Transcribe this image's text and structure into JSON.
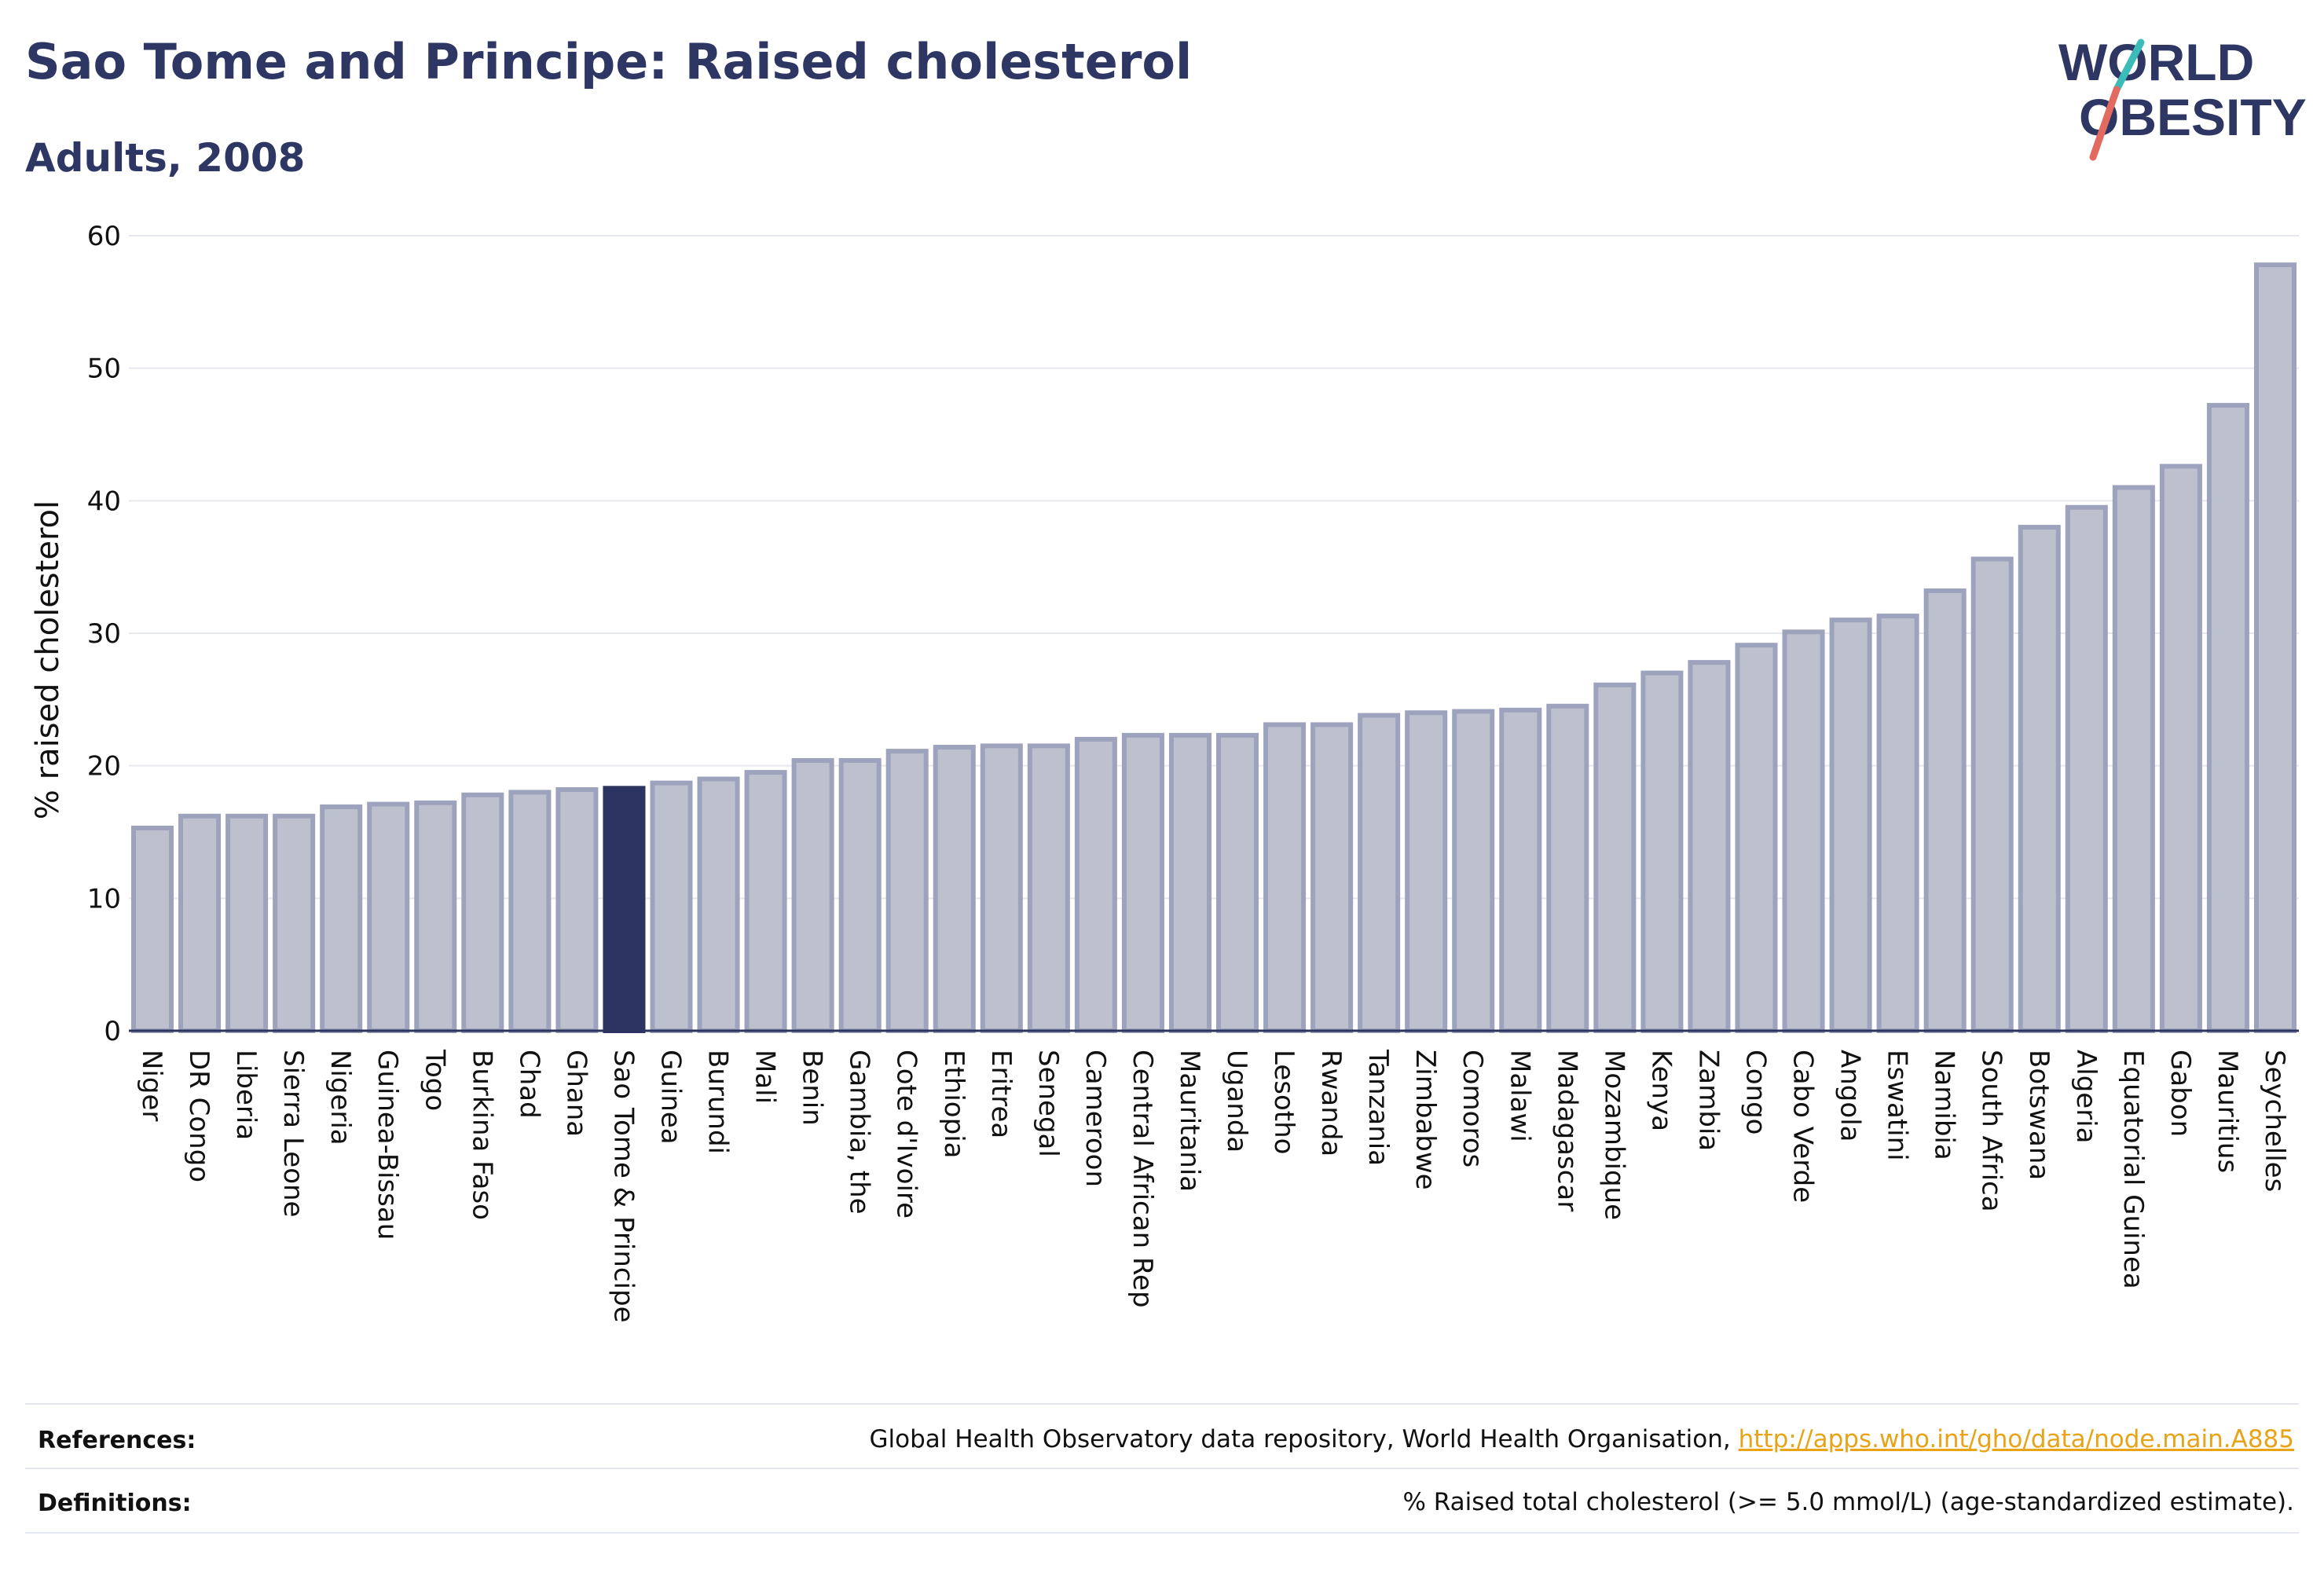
{
  "header": {
    "title": "Sao Tome and Principe: Raised cholesterol",
    "subtitle": "Adults, 2008"
  },
  "logo": {
    "line1": "WORLD",
    "line2": "OBESITY"
  },
  "colors": {
    "bar_fill": "#bdc1ce",
    "bar_stroke": "#9ea3bd",
    "highlight": "#2c3561",
    "grid": "#e6e8ef",
    "axis": "#2b3560",
    "logo_teal": "#3cbcb8",
    "logo_red": "#e26a5f",
    "link": "#e8a317"
  },
  "chart_data": {
    "type": "bar",
    "title": "Sao Tome and Principe: Raised cholesterol",
    "subtitle": "Adults, 2008",
    "xlabel": "",
    "ylabel": "% raised cholesterol",
    "ylim": [
      0,
      60
    ],
    "yticks": [
      0,
      10,
      20,
      30,
      40,
      50,
      60
    ],
    "grid": true,
    "highlight": "Sao Tome & Principe",
    "categories": [
      "Niger",
      "DR Congo",
      "Liberia",
      "Sierra Leone",
      "Nigeria",
      "Guinea-Bissau",
      "Togo",
      "Burkina Faso",
      "Chad",
      "Ghana",
      "Sao Tome & Principe",
      "Guinea",
      "Burundi",
      "Mali",
      "Benin",
      "Gambia, the",
      "Cote d'Ivoire",
      "Ethiopia",
      "Eritrea",
      "Senegal",
      "Cameroon",
      "Central African Rep",
      "Mauritania",
      "Uganda",
      "Lesotho",
      "Rwanda",
      "Tanzania",
      "Zimbabwe",
      "Comoros",
      "Malawi",
      "Madagascar",
      "Mozambique",
      "Kenya",
      "Zambia",
      "Congo",
      "Cabo Verde",
      "Angola",
      "Eswatini",
      "Namibia",
      "South Africa",
      "Botswana",
      "Algeria",
      "Equatorial Guinea",
      "Gabon",
      "Mauritius",
      "Seychelles"
    ],
    "values": [
      15.3,
      16.2,
      16.2,
      16.2,
      16.9,
      17.1,
      17.2,
      17.8,
      18.0,
      18.2,
      18.3,
      18.7,
      19.0,
      19.5,
      20.4,
      20.4,
      21.1,
      21.4,
      21.5,
      21.5,
      22.0,
      22.3,
      22.3,
      22.3,
      23.1,
      23.1,
      23.8,
      24.0,
      24.1,
      24.2,
      24.5,
      26.1,
      27.0,
      27.8,
      29.1,
      30.1,
      31.0,
      31.3,
      33.2,
      35.6,
      38.0,
      39.5,
      41.0,
      42.6,
      47.2,
      57.8
    ]
  },
  "footer": {
    "references_label": "References:",
    "references_text": "Global Health Observatory data repository, World Health Organisation, ",
    "references_link": "http://apps.who.int/gho/data/node.main.A885",
    "definitions_label": "Definitions:",
    "definitions_text": "% Raised total cholesterol (>= 5.0 mmol/L) (age-standardized estimate)."
  }
}
